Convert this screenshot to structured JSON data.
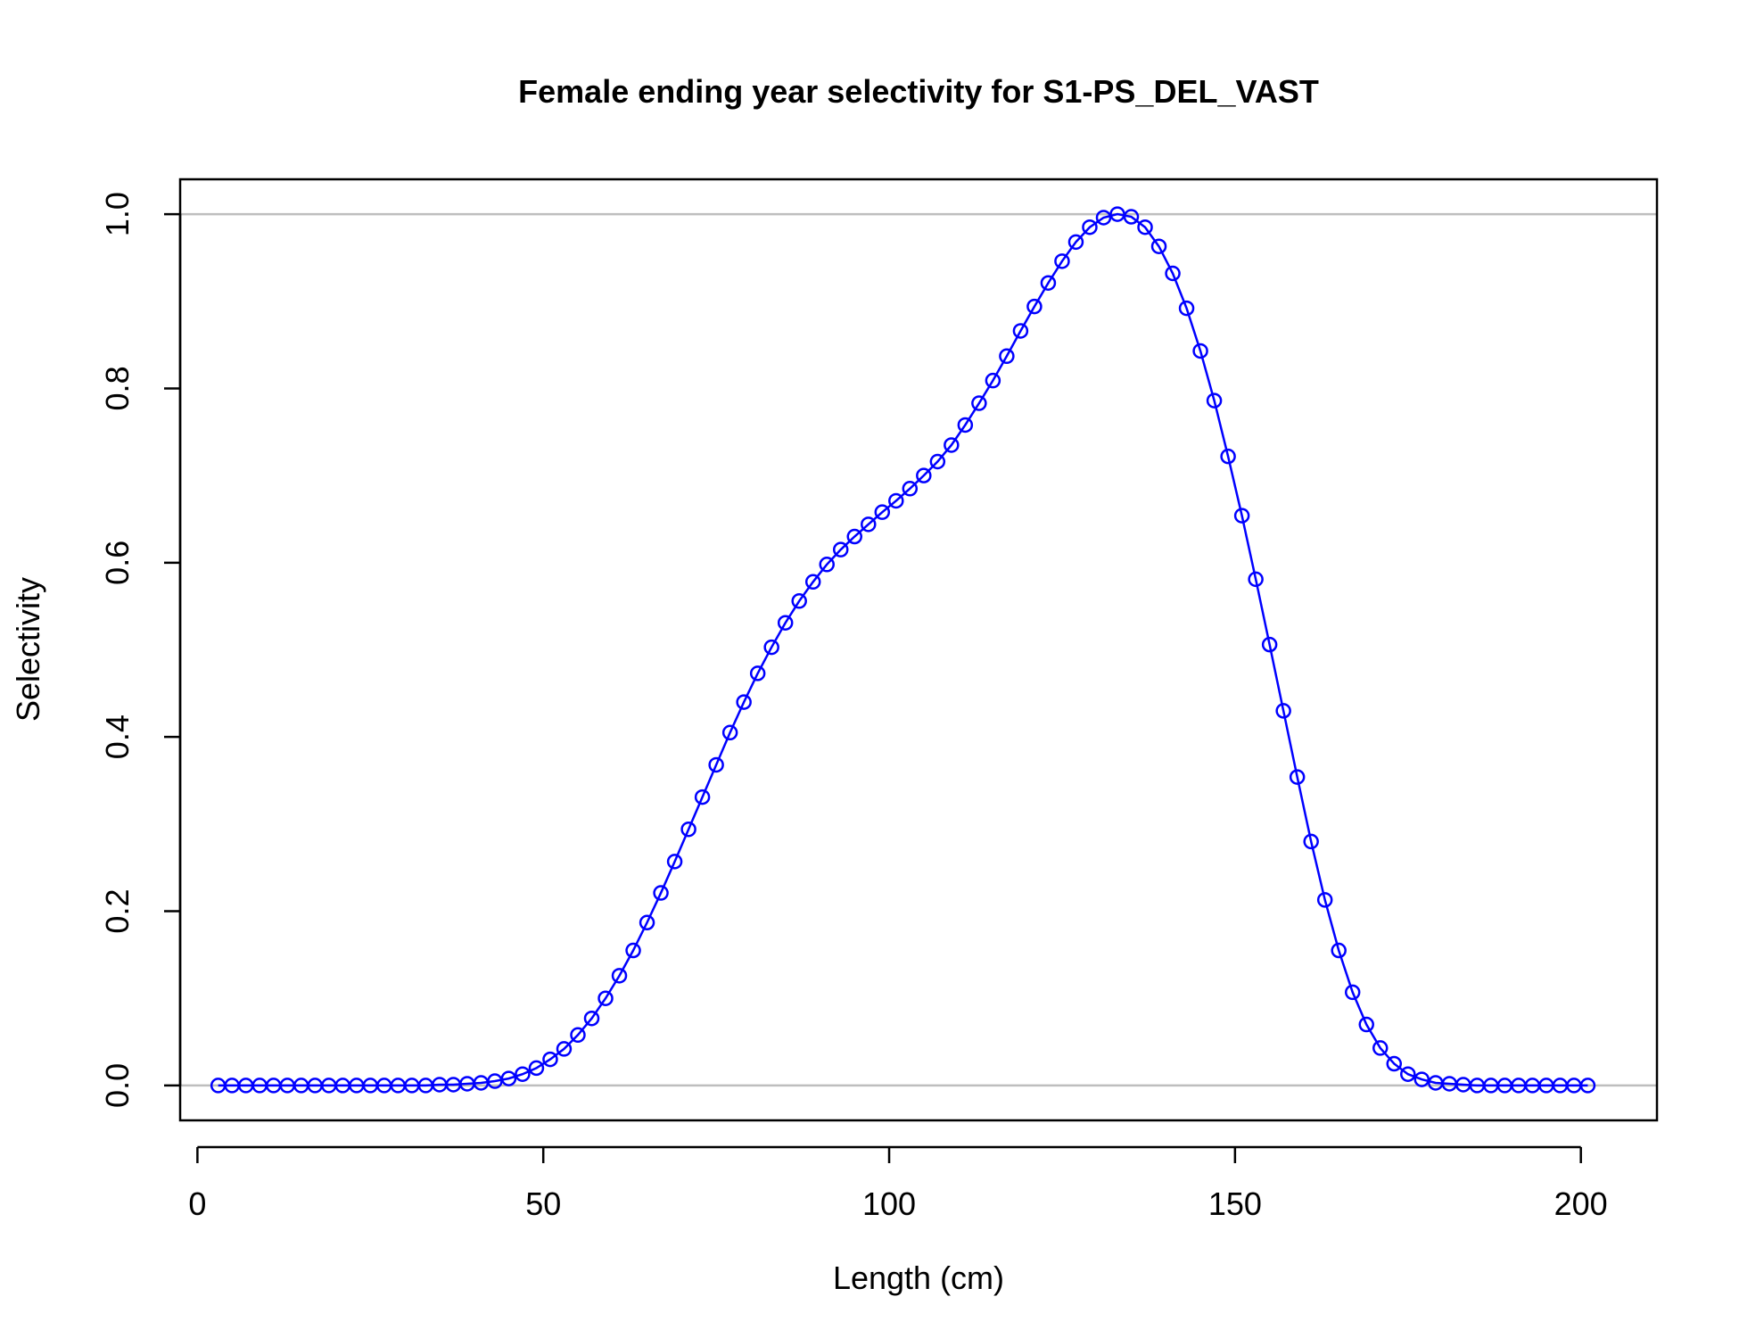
{
  "chart_data": {
    "type": "line",
    "title": "Female ending year selectivity for S1-PS_DEL_VAST",
    "xlabel": "Length (cm)",
    "ylabel": "Selectivity",
    "xlim": [
      -2.5,
      211
    ],
    "ylim": [
      -0.04,
      1.04
    ],
    "x_ticks": [
      0,
      50,
      100,
      150,
      200
    ],
    "x_tick_labels": [
      "0",
      "50",
      "100",
      "150",
      "200"
    ],
    "y_ticks": [
      0.0,
      0.2,
      0.4,
      0.6,
      0.8,
      1.0
    ],
    "y_tick_labels": [
      "0.0",
      "0.2",
      "0.4",
      "0.6",
      "0.8",
      "1.0"
    ],
    "reference_lines": [
      0,
      1
    ],
    "grid": false,
    "legend": "none",
    "colors": {
      "series": "#0000ff",
      "reference": "#bebebe",
      "axis": "#000000"
    },
    "series": [
      {
        "marker": "open-circle",
        "x": [
          3,
          5,
          7,
          9,
          11,
          13,
          15,
          17,
          19,
          21,
          23,
          25,
          27,
          29,
          31,
          33,
          35,
          37,
          39,
          41,
          43,
          45,
          47,
          49,
          51,
          53,
          55,
          57,
          59,
          61,
          63,
          65,
          67,
          69,
          71,
          73,
          75,
          77,
          79,
          81,
          83,
          85,
          87,
          89,
          91,
          93,
          95,
          97,
          99,
          101,
          103,
          105,
          107,
          109,
          111,
          113,
          115,
          117,
          119,
          121,
          123,
          125,
          127,
          129,
          131,
          133,
          135,
          137,
          139,
          141,
          143,
          145,
          147,
          149,
          151,
          153,
          155,
          157,
          159,
          161,
          163,
          165,
          167,
          169,
          171,
          173,
          175,
          177,
          179,
          181,
          183,
          185,
          187,
          189,
          191,
          193,
          195,
          197,
          199,
          201
        ],
        "y": [
          0,
          0,
          0,
          0,
          0,
          0,
          0,
          0,
          0,
          0,
          0,
          0,
          0,
          0,
          0,
          0,
          0.001,
          0.001,
          0.002,
          0.003,
          0.005,
          0.008,
          0.013,
          0.02,
          0.03,
          0.042,
          0.058,
          0.077,
          0.1,
          0.126,
          0.155,
          0.187,
          0.221,
          0.257,
          0.294,
          0.331,
          0.368,
          0.405,
          0.44,
          0.473,
          0.503,
          0.531,
          0.556,
          0.578,
          0.598,
          0.615,
          0.63,
          0.644,
          0.658,
          0.671,
          0.685,
          0.7,
          0.716,
          0.735,
          0.758,
          0.783,
          0.809,
          0.837,
          0.866,
          0.894,
          0.921,
          0.946,
          0.968,
          0.985,
          0.996,
          1.0,
          0.997,
          0.985,
          0.963,
          0.932,
          0.892,
          0.843,
          0.786,
          0.722,
          0.654,
          0.581,
          0.506,
          0.43,
          0.354,
          0.28,
          0.213,
          0.155,
          0.107,
          0.07,
          0.043,
          0.025,
          0.013,
          0.007,
          0.003,
          0.002,
          0.001,
          0,
          0,
          0,
          0,
          0,
          0,
          0,
          0,
          0
        ]
      }
    ]
  }
}
